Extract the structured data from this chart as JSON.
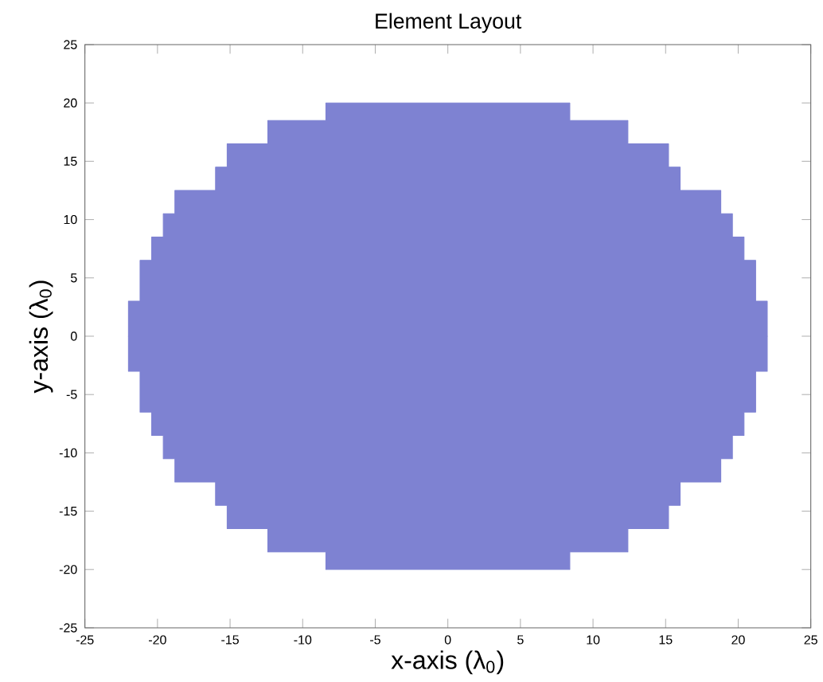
{
  "chart_data": {
    "type": "area",
    "title": "Element Layout",
    "xlabel": "x-axis (λ$_{0}$)",
    "ylabel": "y-axis (λ$_{0}$)",
    "xlim": [
      -25,
      25
    ],
    "ylim": [
      -25,
      25
    ],
    "xticks": [
      -25,
      -20,
      -15,
      -10,
      -5,
      0,
      5,
      10,
      15,
      20,
      25
    ],
    "yticks": [
      -25,
      -20,
      -15,
      -10,
      -5,
      0,
      5,
      10,
      15,
      20,
      25
    ],
    "x": [
      -22,
      -22,
      -21.2,
      -21.2,
      -20.4,
      -20.4,
      -19.6,
      -19.6,
      -18.8,
      -18.8,
      -16,
      -16,
      -15.2,
      -15.2,
      -12.4,
      -12.4,
      -8.4,
      -8.4,
      8.4,
      8.4,
      12.4,
      12.4,
      15.2,
      15.2,
      16,
      16,
      18.8,
      18.8,
      19.6,
      19.6,
      20.4,
      20.4,
      21.2,
      21.2,
      22,
      22
    ],
    "series": [
      {
        "color": "#7e82d2",
        "values": [
          0,
          3,
          3,
          6.5,
          6.5,
          8.5,
          8.5,
          10.5,
          10.5,
          12.5,
          12.5,
          14.5,
          14.5,
          16.5,
          16.5,
          18.5,
          18.5,
          20,
          20,
          18.5,
          18.5,
          16.5,
          16.5,
          14.5,
          14.5,
          12.5,
          12.5,
          10.5,
          10.5,
          8.5,
          8.5,
          6.5,
          6.5,
          3,
          3,
          0
        ]
      },
      {
        "color": "#7e82d2",
        "values": [
          0,
          -3,
          -3,
          -6.5,
          -6.5,
          -8.5,
          -8.5,
          -10.5,
          -10.5,
          -12.5,
          -12.5,
          -14.5,
          -14.5,
          -16.5,
          -16.5,
          -18.5,
          -18.5,
          -20,
          -20,
          -18.5,
          -18.5,
          -16.5,
          -16.5,
          -14.5,
          -14.5,
          -12.5,
          -12.5,
          -10.5,
          -10.5,
          -8.5,
          -8.5,
          -6.5,
          -6.5,
          -3,
          -3,
          0
        ]
      }
    ],
    "grid": false
  }
}
